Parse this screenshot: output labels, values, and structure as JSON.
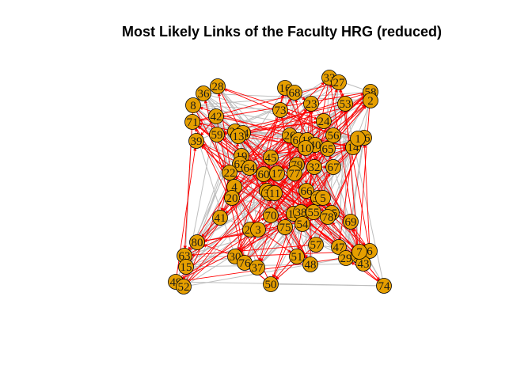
{
  "title": "Most Likely Links of the Faculty HRG (reduced)",
  "colors": {
    "background": "#ffffff",
    "node_fill": "#E69F00",
    "node_stroke": "#000000",
    "label": "#1a1a1a",
    "label_alt": "#1a1aa0",
    "edge_gray": "#BEBEBE",
    "edge_red": "#FF0000"
  },
  "graph": {
    "nodes": [
      {
        "id": "28"
      },
      {
        "id": "36"
      },
      {
        "id": "8"
      },
      {
        "id": "42"
      },
      {
        "id": "71"
      },
      {
        "id": "59"
      },
      {
        "id": "39"
      },
      {
        "id": "16"
      },
      {
        "id": "68"
      },
      {
        "id": "73"
      },
      {
        "id": "23"
      },
      {
        "id": "33"
      },
      {
        "id": "27"
      },
      {
        "id": "58"
      },
      {
        "id": "53"
      },
      {
        "id": "2"
      },
      {
        "id": "24"
      },
      {
        "id": "21"
      },
      {
        "id": "44"
      },
      {
        "id": "26"
      },
      {
        "id": "61"
      },
      {
        "id": "18"
      },
      {
        "id": "40"
      },
      {
        "id": "56"
      },
      {
        "id": "65"
      },
      {
        "id": "46"
      },
      {
        "id": "14"
      },
      {
        "id": "19"
      },
      {
        "id": "62"
      },
      {
        "id": "22"
      },
      {
        "id": "64"
      },
      {
        "id": "60"
      },
      {
        "id": "17"
      },
      {
        "id": "79"
      },
      {
        "id": "77"
      },
      {
        "id": "32"
      },
      {
        "id": "67"
      },
      {
        "id": "4"
      },
      {
        "id": "20"
      },
      {
        "id": "9"
      },
      {
        "id": "34"
      },
      {
        "id": "11"
      },
      {
        "id": "66"
      },
      {
        "id": "31"
      },
      {
        "id": "41"
      },
      {
        "id": "70"
      },
      {
        "id": "12"
      },
      {
        "id": "38"
      },
      {
        "id": "55"
      },
      {
        "id": "35"
      },
      {
        "id": "69"
      },
      {
        "id": "25"
      },
      {
        "id": "3"
      },
      {
        "id": "75"
      },
      {
        "id": "80"
      },
      {
        "id": "63"
      },
      {
        "id": "15"
      },
      {
        "id": "30"
      },
      {
        "id": "76"
      },
      {
        "id": "37"
      },
      {
        "id": "51"
      },
      {
        "id": "47"
      },
      {
        "id": "48"
      },
      {
        "id": "29"
      },
      {
        "id": "72"
      },
      {
        "id": "6"
      },
      {
        "id": "43"
      },
      {
        "id": "49"
      },
      {
        "id": "52"
      },
      {
        "id": "50"
      },
      {
        "id": "74"
      },
      {
        "id": "57"
      },
      {
        "id": "1"
      },
      {
        "id": "10"
      },
      {
        "id": "13"
      },
      {
        "id": "45"
      },
      {
        "id": "54"
      },
      {
        "id": "5"
      },
      {
        "id": "7"
      },
      {
        "id": "78"
      }
    ]
  }
}
